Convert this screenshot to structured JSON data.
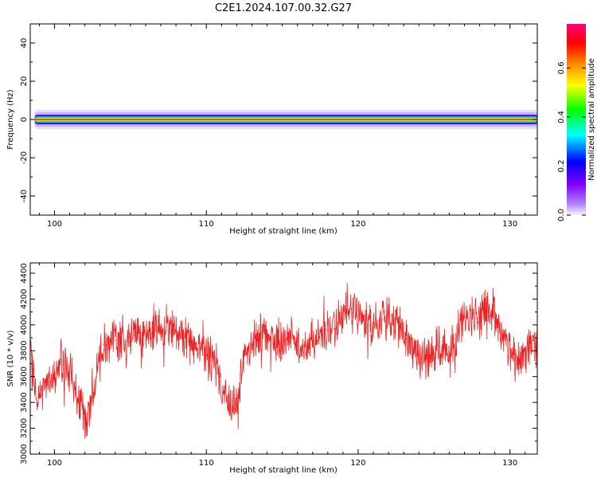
{
  "title": "C2E1.2024.107.00.32.G27",
  "chart_data": [
    {
      "type": "heatmap",
      "xlabel": "Height of straight line (km)",
      "ylabel": "Frequency (Hz)",
      "xlim": [
        98.4,
        131.8
      ],
      "ylim": [
        -50,
        50
      ],
      "xticks": [
        100,
        110,
        120,
        130
      ],
      "yticks": [
        -40,
        -20,
        0,
        20,
        40
      ],
      "ridge": {
        "center_frequency_hz": 0,
        "x_start": 98.7,
        "x_end": 131.8,
        "core_halfwidth_hz": 0.8,
        "band_halfwidth_hz": 2.5,
        "halo_halfwidth_hz": 5
      },
      "colorbar": {
        "label": "Normalized spectral amplitude",
        "range": [
          0,
          0.78
        ],
        "ticks": [
          "0.0",
          "0.2",
          "0.4",
          "0.6"
        ],
        "colormap": [
          "#f4f4ff",
          "#8000ff",
          "#0000ff",
          "#00ffff",
          "#00ff00",
          "#ffff00",
          "#ff8000",
          "#ff0000",
          "#ff0080"
        ]
      }
    },
    {
      "type": "line",
      "xlabel": "Height of straight line (km)",
      "ylabel": "SNR (10 * v/v)",
      "xlim": [
        98.4,
        131.8
      ],
      "ylim": [
        3000,
        4480
      ],
      "xticks": [
        100,
        110,
        120,
        130
      ],
      "yticks": [
        3000,
        3200,
        3400,
        3600,
        3800,
        4000,
        4200,
        4400
      ],
      "color": "#ee2222",
      "series": [
        {
          "x": [
            98.4,
            98.8,
            99.2,
            99.6,
            100.0,
            100.4,
            100.8,
            101.2,
            101.6,
            102.0,
            102.4,
            102.8,
            103.2,
            103.6,
            104.0,
            104.4,
            104.8,
            105.2,
            105.6,
            106.0,
            106.4,
            106.8,
            107.2,
            107.6,
            108.0,
            108.4,
            108.8,
            109.2,
            109.6,
            110.0,
            110.4,
            110.8,
            111.2,
            111.6,
            112.0,
            112.4,
            112.8,
            113.2,
            113.6,
            114.0,
            114.4,
            114.8,
            115.2,
            115.6,
            116.0,
            116.4,
            116.8,
            117.2,
            117.6,
            118.0,
            118.4,
            118.8,
            119.2,
            119.6,
            120.0,
            120.4,
            120.8,
            121.2,
            121.6,
            122.0,
            122.4,
            122.8,
            123.2,
            123.6,
            124.0,
            124.4,
            124.8,
            125.2,
            125.6,
            126.0,
            126.4,
            126.8,
            127.2,
            127.6,
            128.0,
            128.4,
            128.8,
            129.2,
            129.6,
            130.0,
            130.4,
            130.8,
            131.2,
            131.6,
            131.8
          ],
          "y": [
            3760,
            3430,
            3480,
            3560,
            3640,
            3690,
            3660,
            3560,
            3420,
            3240,
            3380,
            3670,
            3850,
            3890,
            3880,
            3860,
            3870,
            3920,
            3940,
            3880,
            3930,
            3990,
            3960,
            3940,
            3950,
            3920,
            3870,
            3860,
            3820,
            3770,
            3720,
            3600,
            3470,
            3330,
            3430,
            3700,
            3820,
            3900,
            3940,
            3950,
            3900,
            3830,
            3870,
            3900,
            3830,
            3840,
            3870,
            3890,
            3920,
            3960,
            3970,
            4050,
            4110,
            4090,
            4060,
            4070,
            4000,
            4010,
            4040,
            4060,
            4000,
            3960,
            3890,
            3830,
            3780,
            3740,
            3770,
            3850,
            3820,
            3790,
            3890,
            4010,
            4050,
            4090,
            4060,
            4120,
            4080,
            3990,
            3950,
            3820,
            3760,
            3730,
            3820,
            3880,
            3900
          ]
        }
      ]
    }
  ]
}
